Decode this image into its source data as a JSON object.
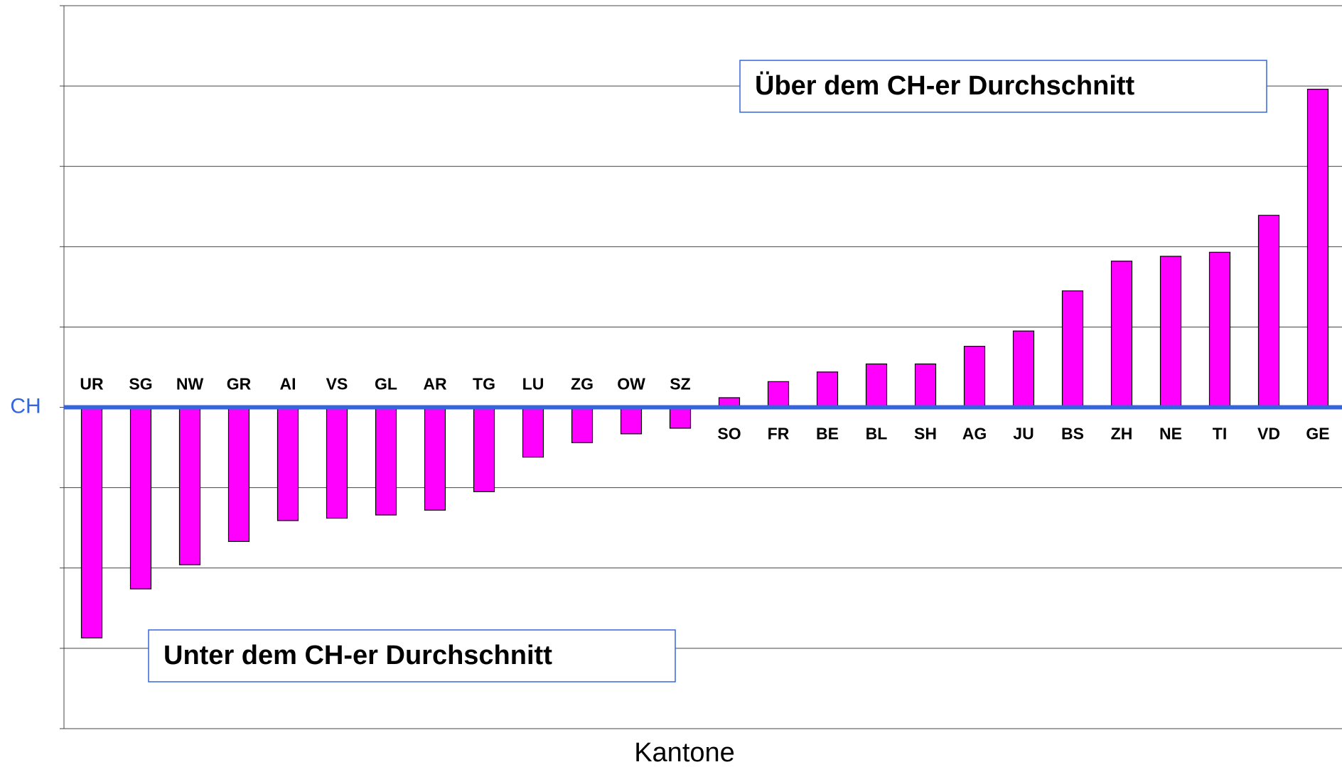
{
  "chart_data": {
    "type": "bar",
    "categories": [
      "UR",
      "SG",
      "NW",
      "GR",
      "AI",
      "VS",
      "GL",
      "AR",
      "TG",
      "LU",
      "ZG",
      "OW",
      "SZ",
      "SO",
      "FR",
      "BE",
      "BL",
      "SH",
      "AG",
      "JU",
      "BS",
      "ZH",
      "NE",
      "TI",
      "VD",
      "GE"
    ],
    "values": [
      -2.87,
      -2.26,
      -1.96,
      -1.67,
      -1.41,
      -1.38,
      -1.34,
      -1.28,
      -1.05,
      -0.62,
      -0.44,
      -0.33,
      -0.26,
      0.12,
      0.32,
      0.44,
      0.54,
      0.54,
      0.76,
      0.95,
      1.45,
      1.82,
      1.88,
      1.93,
      2.39,
      3.96
    ],
    "color": "#ff00ff",
    "ylim": [
      -4,
      5
    ],
    "yticks": [
      {
        "value": 0,
        "label": "CH"
      }
    ],
    "ygrid": [
      -4,
      -3,
      -2,
      -1,
      0,
      1,
      2,
      3,
      4,
      5
    ],
    "xlabel": "Kantone",
    "annotations": [
      "Über dem CH-er Durchschnitt",
      "Unter dem CH-er Durchschnitt"
    ]
  }
}
